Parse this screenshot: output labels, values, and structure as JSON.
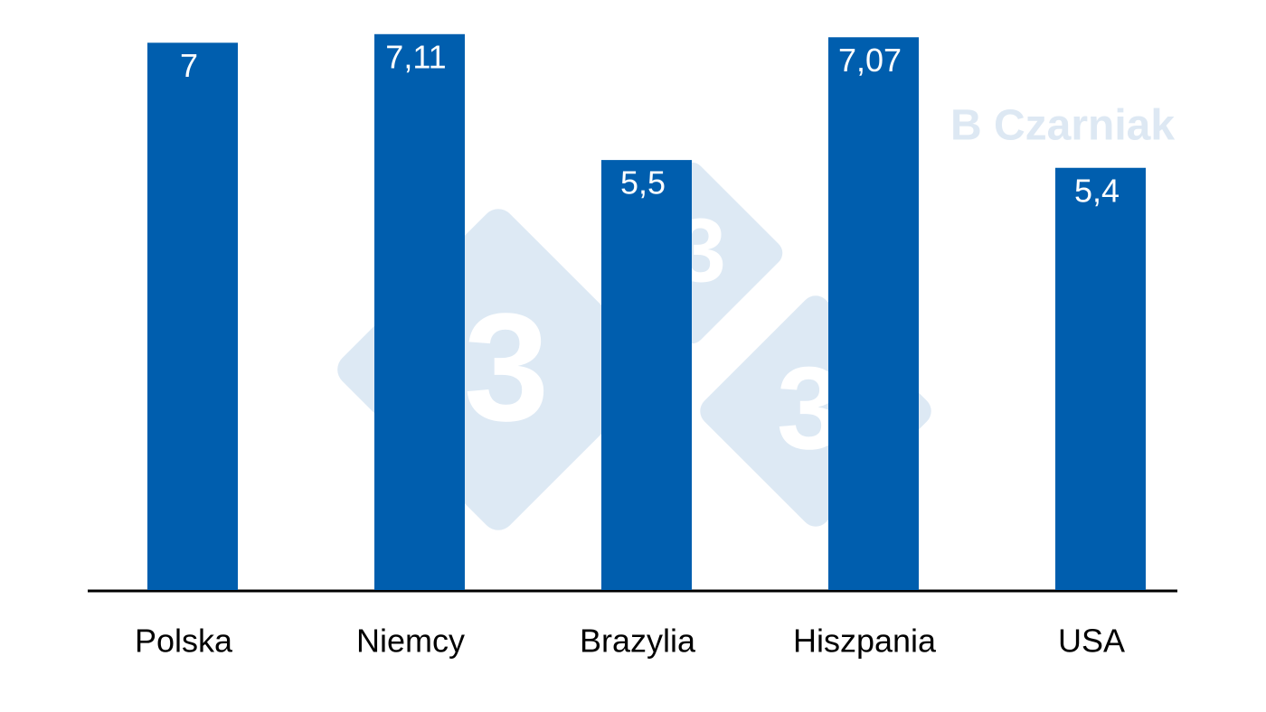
{
  "chart_data": {
    "type": "bar",
    "categories": [
      "Polska",
      "Niemcy",
      "Brazylia",
      "Hiszpania",
      "USA"
    ],
    "values": [
      7,
      7.11,
      5.5,
      7.07,
      5.4
    ],
    "value_labels": [
      "7",
      "7,11",
      "5,5",
      "7,07",
      "5,4"
    ],
    "color": "#005eae",
    "ylim": [
      0,
      7.2
    ],
    "watermark": "B Czarniak",
    "logo": "3"
  }
}
